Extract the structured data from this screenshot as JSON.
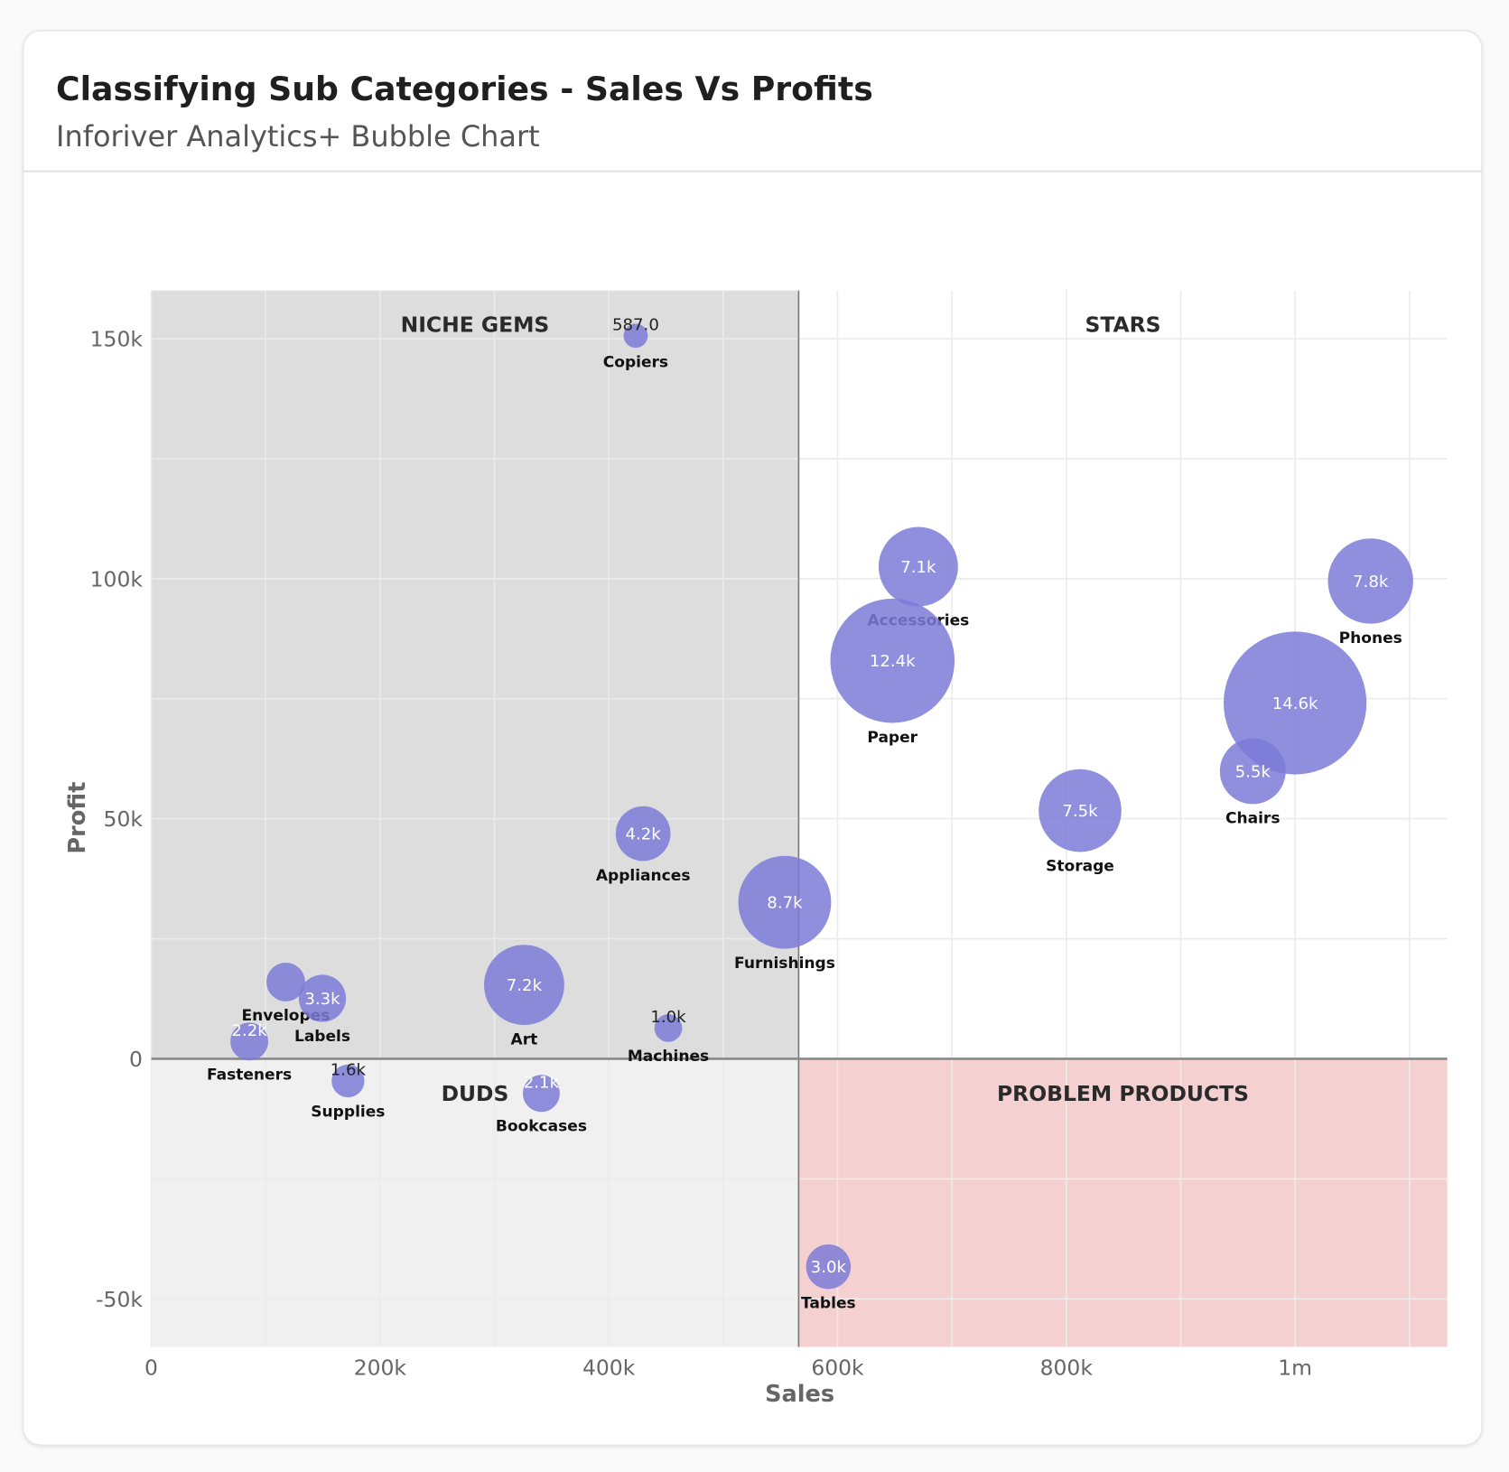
{
  "header": {
    "title": "Classifying Sub Categories - Sales Vs Profits",
    "subtitle": "Inforiver Analytics+ Bubble Chart"
  },
  "chart_data": {
    "type": "bubble",
    "xlabel": "Sales",
    "ylabel": "Profit",
    "xlim": [
      0,
      1133000
    ],
    "ylim": [
      -60000,
      160000
    ],
    "x_ticks": [
      {
        "value": 0,
        "label": "0"
      },
      {
        "value": 200000,
        "label": "200k"
      },
      {
        "value": 400000,
        "label": "400k"
      },
      {
        "value": 600000,
        "label": "600k"
      },
      {
        "value": 800000,
        "label": "800k"
      },
      {
        "value": 1000000,
        "label": "1m"
      }
    ],
    "y_ticks": [
      {
        "value": 150000,
        "label": "150k"
      },
      {
        "value": 100000,
        "label": "100k"
      },
      {
        "value": 50000,
        "label": "50k"
      },
      {
        "value": 0,
        "label": "0"
      },
      {
        "value": -50000,
        "label": "-50k"
      }
    ],
    "grid": true,
    "quadrant_split": {
      "x": 566000,
      "y": 0
    },
    "quadrants": [
      {
        "label": "NICHE GEMS",
        "position": "top-left",
        "color": "#dddddd"
      },
      {
        "label": "STARS",
        "position": "top-right",
        "color": "#ffffff"
      },
      {
        "label": "DUDS",
        "position": "bottom-left",
        "color": "#f0f0f0"
      },
      {
        "label": "PROBLEM PRODUCTS",
        "position": "bottom-right",
        "color": "#f4d0d0"
      }
    ],
    "bubble_color": "#7b7bd8",
    "points": [
      {
        "name": "Copiers",
        "x": 423500,
        "y": 150600,
        "size": 0.587,
        "value_label": "587.0"
      },
      {
        "name": "Accessories",
        "x": 670600,
        "y": 102500,
        "size": 7.1,
        "value_label": "7.1k"
      },
      {
        "name": "Paper",
        "x": 648000,
        "y": 82900,
        "size": 12.4,
        "value_label": "12.4k"
      },
      {
        "name": "Phones",
        "x": 1066000,
        "y": 99500,
        "size": 7.8,
        "value_label": "7.8k"
      },
      {
        "name": "",
        "x": 1000000,
        "y": 74100,
        "size": 14.6,
        "value_label": "14.6k"
      },
      {
        "name": "Chairs",
        "x": 963000,
        "y": 59900,
        "size": 5.5,
        "value_label": "5.5k"
      },
      {
        "name": "Storage",
        "x": 812000,
        "y": 51700,
        "size": 7.5,
        "value_label": "7.5k"
      },
      {
        "name": "Appliances",
        "x": 430000,
        "y": 46900,
        "size": 4.2,
        "value_label": "4.2k"
      },
      {
        "name": "Furnishings",
        "x": 553800,
        "y": 32600,
        "size": 8.7,
        "value_label": "8.7k"
      },
      {
        "name": "Art",
        "x": 326000,
        "y": 15400,
        "size": 7.2,
        "value_label": "7.2k"
      },
      {
        "name": "Envelopes",
        "x": 117600,
        "y": 16000,
        "size": 2.3,
        "value_label": ""
      },
      {
        "name": "Labels",
        "x": 149600,
        "y": 12600,
        "size": 3.3,
        "value_label": "3.3k"
      },
      {
        "name": "Fasteners",
        "x": 85700,
        "y": 3600,
        "size": 2.2,
        "value_label": "2.2k"
      },
      {
        "name": "Machines",
        "x": 452000,
        "y": 6400,
        "size": 1.0,
        "value_label": "1.0k"
      },
      {
        "name": "Supplies",
        "x": 172000,
        "y": -4600,
        "size": 1.6,
        "value_label": "1.6k"
      },
      {
        "name": "Bookcases",
        "x": 341000,
        "y": -7200,
        "size": 2.1,
        "value_label": "2.1k"
      },
      {
        "name": "Tables",
        "x": 592000,
        "y": -43300,
        "size": 3.0,
        "value_label": "3.0k"
      }
    ]
  }
}
